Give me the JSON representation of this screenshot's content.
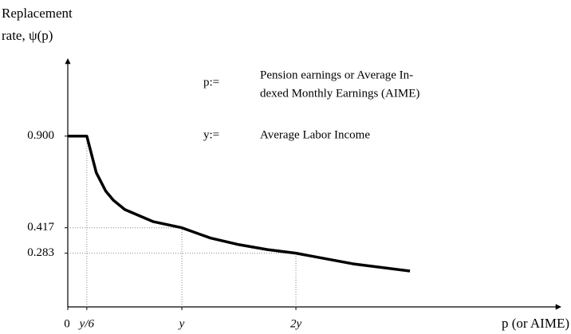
{
  "chart_data": {
    "type": "line",
    "y_label_lines": [
      "Replacement",
      "rate, ψ(p)"
    ],
    "x_label": "p (or AIME)",
    "annotations": [
      {
        "symbol": "p:=",
        "lines": [
          "Pension earnings or Average In-",
          "dexed Monthly Earnings (AIME)"
        ]
      },
      {
        "symbol": "y:=",
        "lines": [
          "Average Labor Income"
        ]
      }
    ],
    "x": [
      0,
      0.1667,
      0.25,
      0.333,
      0.4,
      0.5,
      0.75,
      1,
      1.25,
      1.5,
      1.75,
      2,
      2.5,
      3
    ],
    "series": [
      {
        "color": "#000000",
        "values": [
          0.9,
          0.9,
          0.707,
          0.61,
          0.562,
          0.513,
          0.449,
          0.417,
          0.363,
          0.328,
          0.302,
          0.283,
          0.227,
          0.189
        ]
      }
    ],
    "xlim": [
      0,
      4.3
    ],
    "ylim": [
      0,
      1.3
    ],
    "xticks": [
      0,
      {
        "value": 0.1667,
        "label": "y/6"
      },
      {
        "value": 1,
        "label": "y"
      },
      {
        "value": 2,
        "label": "2y"
      }
    ],
    "yticks": [
      {
        "value": 0.9,
        "label": "0.900"
      },
      {
        "value": 0.417,
        "label": "0.417"
      },
      {
        "value": 0.283,
        "label": "0.283"
      }
    ],
    "grid": false,
    "guide_lines": true
  }
}
